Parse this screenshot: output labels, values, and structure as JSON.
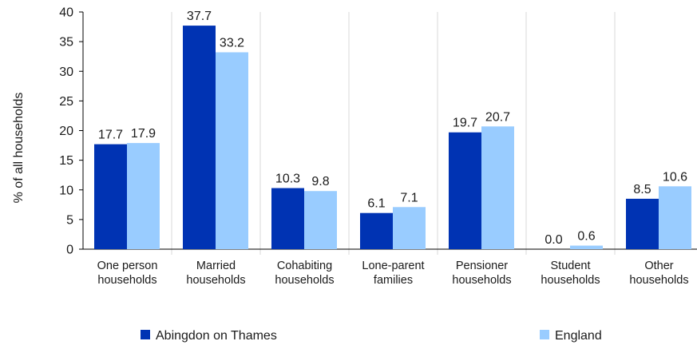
{
  "chart_data": {
    "type": "bar",
    "ylabel": "% of all households",
    "xlabel": "",
    "ylim": [
      0,
      40
    ],
    "yticks": [
      "0",
      "5",
      "10",
      "15",
      "20",
      "25",
      "30",
      "35",
      "40"
    ],
    "grid": true,
    "legend_position": "bottom",
    "categories": [
      [
        "One person",
        "households"
      ],
      [
        "Married",
        "households"
      ],
      [
        "Cohabiting",
        "households"
      ],
      [
        "Lone-parent",
        "families"
      ],
      [
        "Pensioner",
        "households"
      ],
      [
        "Student",
        "households"
      ],
      [
        "Other",
        "households"
      ]
    ],
    "series": [
      {
        "name": "Abingdon on Thames",
        "color": "#0033b3",
        "values": [
          17.7,
          37.7,
          10.3,
          6.1,
          19.7,
          0.0,
          8.5
        ],
        "labels": [
          "17.7",
          "37.7",
          "10.3",
          "6.1",
          "19.7",
          "0.0",
          "8.5"
        ]
      },
      {
        "name": "England",
        "color": "#99ccff",
        "values": [
          17.9,
          33.2,
          9.8,
          7.1,
          20.7,
          0.6,
          10.6
        ],
        "labels": [
          "17.9",
          "33.2",
          "9.8",
          "7.1",
          "20.7",
          "0.6",
          "10.6"
        ]
      }
    ]
  }
}
